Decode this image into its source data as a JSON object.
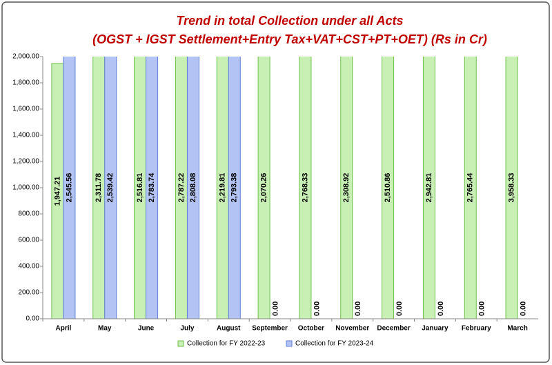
{
  "chart_data": {
    "type": "bar",
    "title": [
      "Trend in total Collection under all Acts",
      "(OGST + IGST Settlement+Entry Tax+VAT+CST+PT+OET) (Rs in Cr)"
    ],
    "categories": [
      "April",
      "May",
      "June",
      "July",
      "August",
      "September",
      "October",
      "November",
      "December",
      "January",
      "February",
      "March"
    ],
    "series": [
      {
        "name": "Collection for FY 2022-23",
        "color": "#c9f0b4",
        "values": [
          1947.21,
          2311.78,
          2516.81,
          2787.22,
          2219.81,
          2070.26,
          2768.33,
          2308.92,
          2510.86,
          2942.81,
          2765.44,
          3958.33
        ],
        "value_labels": [
          "1,947.21",
          "2,311.78",
          "2,516.81",
          "2,787.22",
          "2,219.81",
          "2,070.26",
          "2,768.33",
          "2,308.92",
          "2,510.86",
          "2,942.81",
          "2,765.44",
          "3,958.33"
        ]
      },
      {
        "name": "Collection for FY 2023-24",
        "color": "#b3c3f4",
        "values": [
          2545.56,
          2539.42,
          2783.74,
          2808.08,
          2793.38,
          0,
          0,
          0,
          0,
          0,
          0,
          0
        ],
        "value_labels": [
          "2,545.56",
          "2,539.42",
          "2,783.74",
          "2,808.08",
          "2,793.38",
          "0.00",
          "0.00",
          "0.00",
          "0.00",
          "0.00",
          "0.00",
          "0.00"
        ]
      }
    ],
    "ylim": [
      0,
      2000
    ],
    "yticks": [
      {
        "value": 0,
        "label": "0.00"
      },
      {
        "value": 200,
        "label": "200.00"
      },
      {
        "value": 400,
        "label": "400.00"
      },
      {
        "value": 600,
        "label": "600.00"
      },
      {
        "value": 800,
        "label": "800.00"
      },
      {
        "value": 1000,
        "label": "1,000.00"
      },
      {
        "value": 1200,
        "label": "1,200.00"
      },
      {
        "value": 1400,
        "label": "1,400.00"
      },
      {
        "value": 1600,
        "label": "1,600.00"
      },
      {
        "value": 1800,
        "label": "1,800.00"
      },
      {
        "value": 2000,
        "label": "2,000.00"
      }
    ],
    "grid": false,
    "legend": "bottom"
  }
}
